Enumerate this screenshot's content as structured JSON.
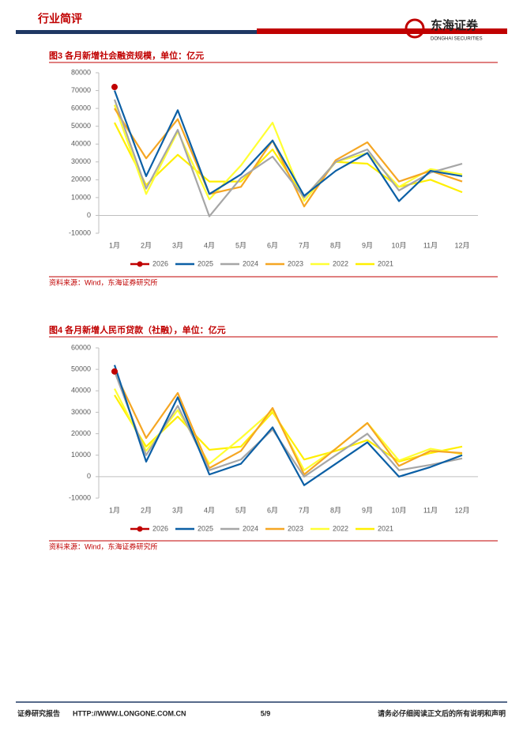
{
  "header": {
    "title": "行业简评",
    "logo": "东海证券",
    "logo_en": "DONGHAI SECURITIES"
  },
  "chart_data": [
    {
      "type": "line",
      "title": "图3  各月新增社会融资规模，单位：亿元",
      "source": "资料来源：Wind，东海证券研究所",
      "categories": [
        "1月",
        "2月",
        "3月",
        "4月",
        "5月",
        "6月",
        "7月",
        "8月",
        "9月",
        "10月",
        "11月",
        "12月"
      ],
      "ylim": [
        -10000,
        80000
      ],
      "yticks": [
        -10000,
        0,
        10000,
        20000,
        30000,
        40000,
        50000,
        60000,
        70000,
        80000
      ],
      "grid": false,
      "legend": "bottom",
      "series": [
        {
          "name": "2026",
          "color": "#c00000",
          "marker": "circle",
          "values": [
            72000,
            null,
            null,
            null,
            null,
            null,
            null,
            null,
            null,
            null,
            null,
            null
          ]
        },
        {
          "name": "2025",
          "color": "#0b5fa5",
          "values": [
            70000,
            22000,
            59000,
            12000,
            23000,
            42000,
            11000,
            25000,
            35000,
            8000,
            25000,
            22000
          ]
        },
        {
          "name": "2024",
          "color": "#a6a6a6",
          "values": [
            65000,
            15000,
            48000,
            -500,
            21000,
            33000,
            10000,
            30000,
            37000,
            14000,
            24000,
            29000
          ]
        },
        {
          "name": "2023",
          "color": "#f5a623",
          "values": [
            60000,
            32000,
            54000,
            12000,
            16000,
            42000,
            5000,
            31000,
            41000,
            19000,
            25000,
            19000
          ]
        },
        {
          "name": "2022",
          "color": "#ffff33",
          "values": [
            62000,
            12000,
            47000,
            9000,
            28000,
            52000,
            8000,
            30000,
            35000,
            16000,
            26000,
            23000
          ]
        },
        {
          "name": "2021",
          "color": "#ffef00",
          "values": [
            52000,
            17000,
            34000,
            19000,
            19000,
            37000,
            10000,
            30000,
            29000,
            16000,
            20000,
            13000
          ]
        }
      ]
    },
    {
      "type": "line",
      "title": "图4  各月新增人民币贷款（社融），单位：亿元",
      "source": "资料来源：Wind，东海证券研究所",
      "categories": [
        "1月",
        "2月",
        "3月",
        "4月",
        "5月",
        "6月",
        "7月",
        "8月",
        "9月",
        "10月",
        "11月",
        "12月"
      ],
      "ylim": [
        -10000,
        60000
      ],
      "yticks": [
        -10000,
        0,
        10000,
        20000,
        30000,
        40000,
        50000,
        60000
      ],
      "grid": false,
      "legend": "bottom",
      "series": [
        {
          "name": "2026",
          "color": "#c00000",
          "marker": "circle",
          "values": [
            49000,
            null,
            null,
            null,
            null,
            null,
            null,
            null,
            null,
            null,
            null,
            null
          ]
        },
        {
          "name": "2025",
          "color": "#0b5fa5",
          "values": [
            52000,
            7000,
            37000,
            1000,
            6000,
            23000,
            -4000,
            6000,
            16000,
            0,
            4500,
            10000
          ]
        },
        {
          "name": "2024",
          "color": "#a6a6a6",
          "values": [
            49000,
            10000,
            33000,
            3000,
            8000,
            22000,
            0,
            10000,
            20000,
            3000,
            5500,
            8500
          ]
        },
        {
          "name": "2023",
          "color": "#f5a623",
          "values": [
            49000,
            18000,
            39000,
            4000,
            12000,
            32000,
            1000,
            13000,
            25000,
            5000,
            12000,
            11000
          ]
        },
        {
          "name": "2022",
          "color": "#ffff33",
          "values": [
            41000,
            12000,
            31000,
            6000,
            18000,
            31000,
            3000,
            13000,
            25000,
            7500,
            13000,
            10500
          ]
        },
        {
          "name": "2021",
          "color": "#ffef00",
          "values": [
            38000,
            14000,
            28000,
            12500,
            14000,
            30000,
            8000,
            12000,
            17000,
            7000,
            11000,
            14000
          ]
        }
      ]
    }
  ],
  "footer": {
    "left": "证券研究报告",
    "url": "HTTP://WWW.LONGONE.COM.CN",
    "page": "5/9",
    "right": "请务必仔细阅读正文后的所有说明和声明"
  }
}
